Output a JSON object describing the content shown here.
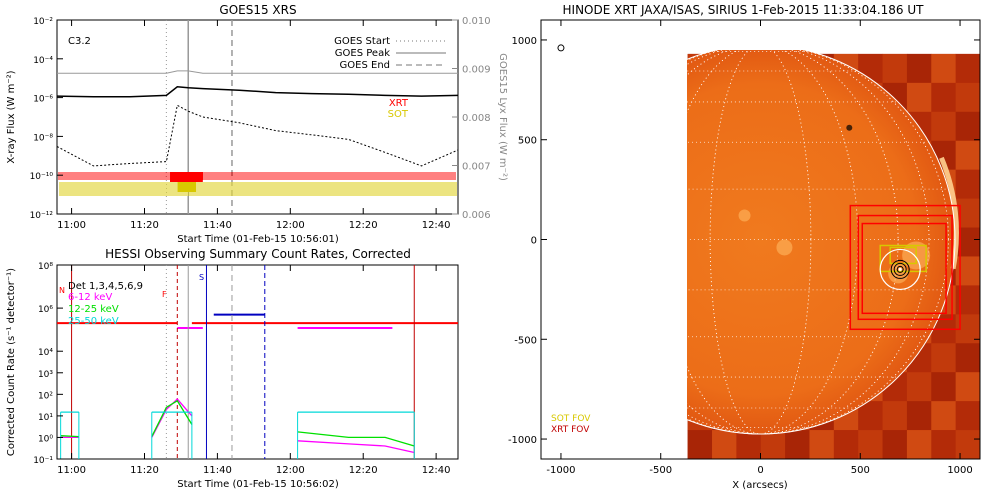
{
  "panels": {
    "goes": {
      "title": "GOES15 XRS",
      "class_label": "C3.2",
      "ylabel": "X-ray Flux (W m⁻²)",
      "y2label": "GOES15 Lyx Flux (W m⁻²)",
      "xlabel": "Start Time (01-Feb-15 10:56:01)",
      "legend": [
        "GOES Start",
        "GOES Peak",
        "GOES End"
      ],
      "instr_labels": [
        "XRT",
        "SOT"
      ],
      "instr_colors": [
        "#ff0000",
        "#d8c800"
      ]
    },
    "hessi": {
      "title": "HESSI Observing Summary Count Rates, Corrected",
      "ylabel": "Corrected Count Rate (s⁻¹ detector⁻¹)",
      "xlabel": "Start Time (01-Feb-15 10:56:02)",
      "legend": [
        "Det 1,3,4,5,6,9",
        "6-12 keV",
        "12-25 keV",
        "25-50 keV"
      ],
      "legend_colors": [
        "#000000",
        "#ff00ff",
        "#00e000",
        "#00d8d8"
      ],
      "flags": [
        "N",
        "F",
        "S"
      ]
    },
    "hinode": {
      "title": "HINODE XRT JAXA/ISAS, SIRIUS   1-Feb-2015 11:33:04.186 UT",
      "xlabel": "X (arcsecs)",
      "legend": [
        "SOT FOV",
        "XRT FOV"
      ],
      "legend_colors": [
        "#d8c800",
        "#c00000"
      ]
    }
  },
  "chart_data": [
    {
      "type": "line",
      "title": "GOES15 XRS",
      "xlabel": "Start Time (01-Feb-15 10:56:01)",
      "ylabel": "X-ray Flux (W m⁻²)",
      "y_scale": "log",
      "ylim": [
        1e-12,
        0.01
      ],
      "y2lim": [
        0.006,
        0.01
      ],
      "x_ticks": [
        "11:00",
        "11:20",
        "11:40",
        "12:00",
        "12:20",
        "12:40"
      ],
      "y_ticks": [
        "10⁻¹²",
        "10⁻¹⁰",
        "10⁻⁸",
        "10⁻⁶",
        "10⁻⁴",
        "10⁻²"
      ],
      "y2_ticks": [
        "0.006",
        "0.007",
        "0.008",
        "0.009",
        "0.010"
      ],
      "x_minutes_since_1056": [
        0,
        10,
        20,
        30,
        33,
        36,
        40,
        50,
        60,
        70,
        80,
        90,
        100,
        110
      ],
      "series": [
        {
          "name": "",
          "color": "#000000",
          "values": [
            1.2e-06,
            1.1e-06,
            1.1e-06,
            1.3e-06,
            3.6e-06,
            3.2e-06,
            2.9e-06,
            2.4e-06,
            1.8e-06,
            1.6e-06,
            1.5e-06,
            1.3e-06,
            1.2e-06,
            1.3e-06
          ]
        },
        {
          "name": "",
          "color": "#000000",
          "values": [
            3e-09,
            3e-10,
            4e-10,
            5e-10,
            4e-07,
            2e-07,
            1e-07,
            5e-08,
            2e-08,
            1.2e-08,
            7e-09,
            1.5e-09,
            3e-10,
            2e-09
          ]
        },
        {
          "name": "",
          "color": "#999999",
          "values": [
            0.0089,
            0.0089,
            0.0089,
            0.0089,
            0.00895,
            0.00895,
            0.0089,
            0.0089,
            0.0089,
            0.0089,
            0.0089,
            0.0089,
            0.0089,
            0.0089
          ]
        }
      ],
      "event_lines": {
        "goes_start": "11:26",
        "goes_peak": "11:32",
        "goes_end": "11:44"
      }
    },
    {
      "type": "line",
      "title": "HESSI Observing Summary Count Rates, Corrected",
      "xlabel": "Start Time (01-Feb-15 10:56:02)",
      "ylabel": "Corrected Count Rate (s⁻¹ detector⁻¹)",
      "y_scale": "log",
      "ylim": [
        0.1,
        100000000.0
      ],
      "x_ticks": [
        "11:00",
        "11:20",
        "11:40",
        "12:00",
        "12:20",
        "12:40"
      ],
      "y_ticks": [
        "10⁻¹",
        "10⁰",
        "10¹",
        "10²",
        "10³",
        "10⁴",
        "10⁶",
        "10⁸"
      ],
      "series": [
        {
          "name": "6-12 keV",
          "color": "#ff00ff",
          "segments": [
            [
              [
                1,
                1.0
              ],
              [
                6,
                1.0
              ]
            ],
            [
              [
                26,
                1.0
              ],
              [
                30,
                20
              ],
              [
                33,
                60
              ],
              [
                37,
                10
              ]
            ],
            [
              [
                66,
                0.7
              ],
              [
                80,
                0.5
              ],
              [
                90,
                0.4
              ],
              [
                98,
                0.2
              ]
            ]
          ]
        },
        {
          "name": "12-25 keV",
          "color": "#00e000",
          "segments": [
            [
              [
                1,
                1.2
              ],
              [
                6,
                1.1
              ]
            ],
            [
              [
                26,
                1.1
              ],
              [
                30,
                25
              ],
              [
                33,
                50
              ],
              [
                37,
                4
              ]
            ],
            [
              [
                66,
                1.8
              ],
              [
                80,
                1.0
              ],
              [
                90,
                1.0
              ],
              [
                98,
                0.4
              ]
            ]
          ]
        },
        {
          "name": "25-50 keV",
          "color": "#00d8d8",
          "segments": [
            [
              [
                1,
                15
              ],
              [
                6,
                15
              ]
            ],
            [
              [
                26,
                15
              ],
              [
                37,
                15
              ]
            ],
            [
              [
                66,
                15
              ],
              [
                80,
                15
              ],
              [
                98,
                15
              ]
            ]
          ]
        }
      ]
    },
    {
      "type": "scatter",
      "title": "HINODE XRT JAXA/ISAS, SIRIUS   1-Feb-2015 11:33:04.186 UT",
      "xlabel": "X (arcsecs)",
      "xlim": [
        -1100,
        1100
      ],
      "ylim": [
        -1100,
        1100
      ],
      "x_ticks": [
        "-1000",
        "-500",
        "0",
        "500",
        "1000"
      ],
      "y_ticks": [
        "-1000",
        "-500",
        "0",
        "500",
        "1000"
      ],
      "solar_radius": 975,
      "image_extent_arcsec": {
        "x": [
          -365,
          1100
        ],
        "y": [
          -1100,
          930
        ]
      },
      "target_center_arcsec": [
        700,
        -150
      ],
      "xrt_fov_boxes_arcsec": [
        [
          450,
          -450,
          1000,
          170
        ],
        [
          490,
          -400,
          960,
          120
        ],
        [
          510,
          -370,
          930,
          80
        ]
      ],
      "sot_fov_boxes_arcsec": [
        [
          600,
          -160,
          830,
          -30
        ],
        [
          650,
          -120,
          780,
          -40
        ]
      ]
    }
  ]
}
